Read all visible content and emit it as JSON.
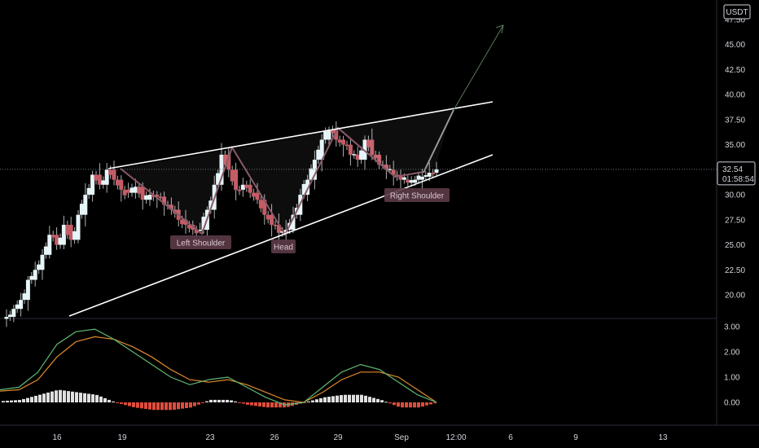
{
  "currency": "USDT",
  "price_scale": {
    "min": 17.5,
    "max": 48.5,
    "ticks": [
      "47.50",
      "45.00",
      "42.50",
      "40.00",
      "37.50",
      "35.00",
      "32.50",
      "30.00",
      "27.50",
      "25.00",
      "22.50",
      "20.00"
    ]
  },
  "macd_scale": {
    "ticks": [
      "3.00",
      "2.00",
      "1.00",
      "0.00"
    ]
  },
  "last_price": {
    "value": "32.54",
    "countdown": "01:58:54"
  },
  "date_axis": [
    "16",
    "19",
    "23",
    "26",
    "29",
    "Sep",
    "12:00",
    "6",
    "9",
    "13"
  ],
  "pattern_labels": {
    "left_shoulder": "Left Shoulder",
    "head": "Head",
    "right_shoulder": "Right Shoulder"
  },
  "colors": {
    "background": "#000000",
    "up": "#e6f5f8",
    "down": "#c45c66",
    "wick": "#b0b0b0",
    "trendline": "#ffffff",
    "pattern": "#8a5a68",
    "macd_line": "#5fb873",
    "signal_line": "#e08a2c",
    "hist_pos": "#e0e0e0",
    "hist_neg": "#e04c3c",
    "forecast": "#7a7a7a"
  },
  "chart_data": [
    {
      "type": "candlestick",
      "title": "",
      "xlabel": "",
      "ylabel": "",
      "ylim": [
        17.5,
        48.5
      ],
      "x_ticks": [
        "16",
        "19",
        "23",
        "26",
        "29",
        "Sep",
        "12:00",
        "6",
        "9",
        "13"
      ],
      "annotations": [
        "Left Shoulder",
        "Head",
        "Right Shoulder"
      ],
      "series": [
        {
          "name": "",
          "close_path": [
            17.8,
            18.6,
            19.5,
            21.5,
            22.5,
            24,
            26,
            25,
            27,
            25.5,
            28,
            30,
            32,
            31,
            32.5,
            31.5,
            30.5,
            30.2,
            30.8,
            29.5,
            30,
            29.8,
            29,
            28.5,
            27.5,
            27,
            26.5,
            26.5,
            28.5,
            31,
            34,
            32.5,
            30.5,
            31,
            30.2,
            29.5,
            28,
            27,
            26.2,
            26.5,
            28,
            30,
            31.5,
            33.5,
            35.5,
            36.5,
            35.5,
            35,
            34,
            33.5,
            35.5,
            34,
            33,
            32.5,
            32,
            31.5,
            31.2,
            31.5,
            31.8,
            32.2,
            32.54
          ]
        }
      ],
      "last_value": 32.54
    },
    {
      "type": "line",
      "title": "",
      "ylim": [
        -0.6,
        3.2
      ],
      "x_ticks": [
        "16",
        "19",
        "23",
        "26",
        "29",
        "Sep",
        "12:00",
        "6",
        "9",
        "13"
      ],
      "series": [
        {
          "name": "",
          "values": [
            0.5,
            0.6,
            1.2,
            2.3,
            2.8,
            2.9,
            2.5,
            2.0,
            1.5,
            1.0,
            0.7,
            0.9,
            1.0,
            0.6,
            0.2,
            -0.1,
            0.0,
            0.6,
            1.2,
            1.5,
            1.3,
            0.8,
            0.3,
            0.0
          ]
        },
        {
          "name": "",
          "values": [
            0.45,
            0.5,
            0.9,
            1.8,
            2.4,
            2.6,
            2.5,
            2.2,
            1.8,
            1.3,
            0.9,
            0.8,
            0.9,
            0.7,
            0.4,
            0.1,
            0.0,
            0.4,
            0.9,
            1.2,
            1.2,
            1.0,
            0.5,
            0.0
          ]
        }
      ],
      "histogram": [
        0.05,
        0.1,
        0.3,
        0.5,
        0.4,
        0.3,
        0.0,
        -0.2,
        -0.3,
        -0.3,
        -0.2,
        0.1,
        0.1,
        -0.1,
        -0.2,
        -0.2,
        0.0,
        0.2,
        0.3,
        0.3,
        0.1,
        -0.2,
        -0.2,
        0.0
      ]
    }
  ]
}
